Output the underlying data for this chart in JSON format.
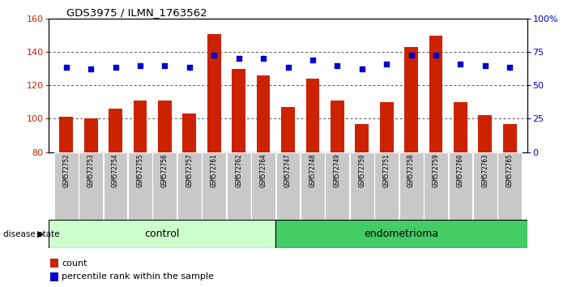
{
  "title": "GDS3975 / ILMN_1763562",
  "samples": [
    "GSM572752",
    "GSM572753",
    "GSM572754",
    "GSM572755",
    "GSM572756",
    "GSM572757",
    "GSM572761",
    "GSM572762",
    "GSM572764",
    "GSM572747",
    "GSM572748",
    "GSM572749",
    "GSM572750",
    "GSM572751",
    "GSM572758",
    "GSM572759",
    "GSM572760",
    "GSM572763",
    "GSM572765"
  ],
  "bar_values": [
    101,
    100,
    106,
    111,
    111,
    103,
    151,
    130,
    126,
    107,
    124,
    111,
    97,
    110,
    143,
    150,
    110,
    102,
    97
  ],
  "dot_values_left": [
    131,
    130,
    131,
    132,
    132,
    131,
    138,
    136,
    136,
    131,
    135,
    132,
    130,
    133,
    138,
    138,
    133,
    132,
    131
  ],
  "ylim_left": [
    80,
    160
  ],
  "ylim_right": [
    0,
    100
  ],
  "yticks_left": [
    80,
    100,
    120,
    140,
    160
  ],
  "yticks_right": [
    0,
    25,
    50,
    75,
    100
  ],
  "ytick_labels_right": [
    "0",
    "25",
    "50",
    "75",
    "100%"
  ],
  "bar_color": "#cc2200",
  "dot_color": "#0000cc",
  "control_count": 9,
  "endometrioma_count": 10,
  "control_label": "control",
  "endometrioma_label": "endometrioma",
  "control_bg": "#ccffcc",
  "endometrioma_bg": "#44cc66",
  "sample_label_bg": "#c8c8c8",
  "disease_state_label": "disease state",
  "legend_count_label": "count",
  "legend_percentile_label": "percentile rank within the sample",
  "gridline_values": [
    100,
    120,
    140
  ]
}
